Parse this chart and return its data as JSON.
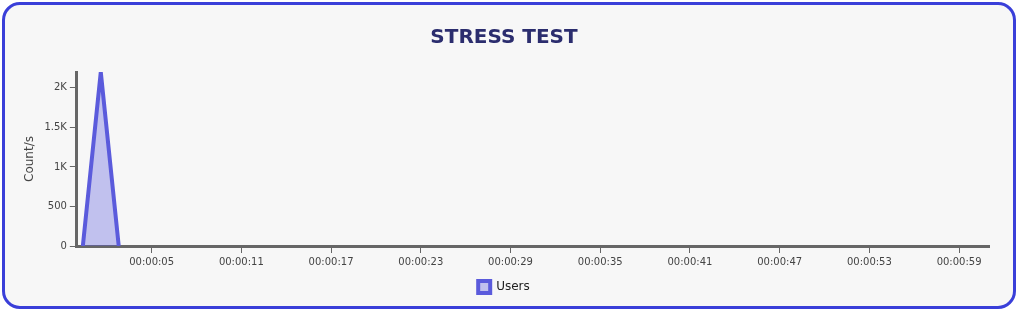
{
  "chart_data": {
    "type": "area",
    "title": "STRESS TEST",
    "ylabel": "Count/s",
    "x": [
      0.4,
      1.6,
      2.8
    ],
    "series": [
      {
        "name": "Users",
        "color": "#5b5bdc",
        "values": [
          0,
          2200,
          0
        ]
      }
    ],
    "xlim": [
      0,
      61
    ],
    "xticks": [
      {
        "value": 5,
        "label": "00:00:05"
      },
      {
        "value": 11,
        "label": "00:00:11"
      },
      {
        "value": 17,
        "label": "00:00:17"
      },
      {
        "value": 23,
        "label": "00:00:23"
      },
      {
        "value": 29,
        "label": "00:00:29"
      },
      {
        "value": 35,
        "label": "00:00:35"
      },
      {
        "value": 41,
        "label": "00:00:41"
      },
      {
        "value": 47,
        "label": "00:00:47"
      },
      {
        "value": 53,
        "label": "00:00:53"
      },
      {
        "value": 59,
        "label": "00:00:59"
      }
    ],
    "ylim": [
      0,
      2200
    ],
    "yticks": [
      0,
      500,
      {
        "value": 1000,
        "label": "1K"
      },
      {
        "value": 1500,
        "label": "1.5K"
      },
      {
        "value": 2000,
        "label": "2K"
      }
    ],
    "grid": false,
    "legend": "bottom",
    "marker": "none",
    "line_style": "solid"
  }
}
